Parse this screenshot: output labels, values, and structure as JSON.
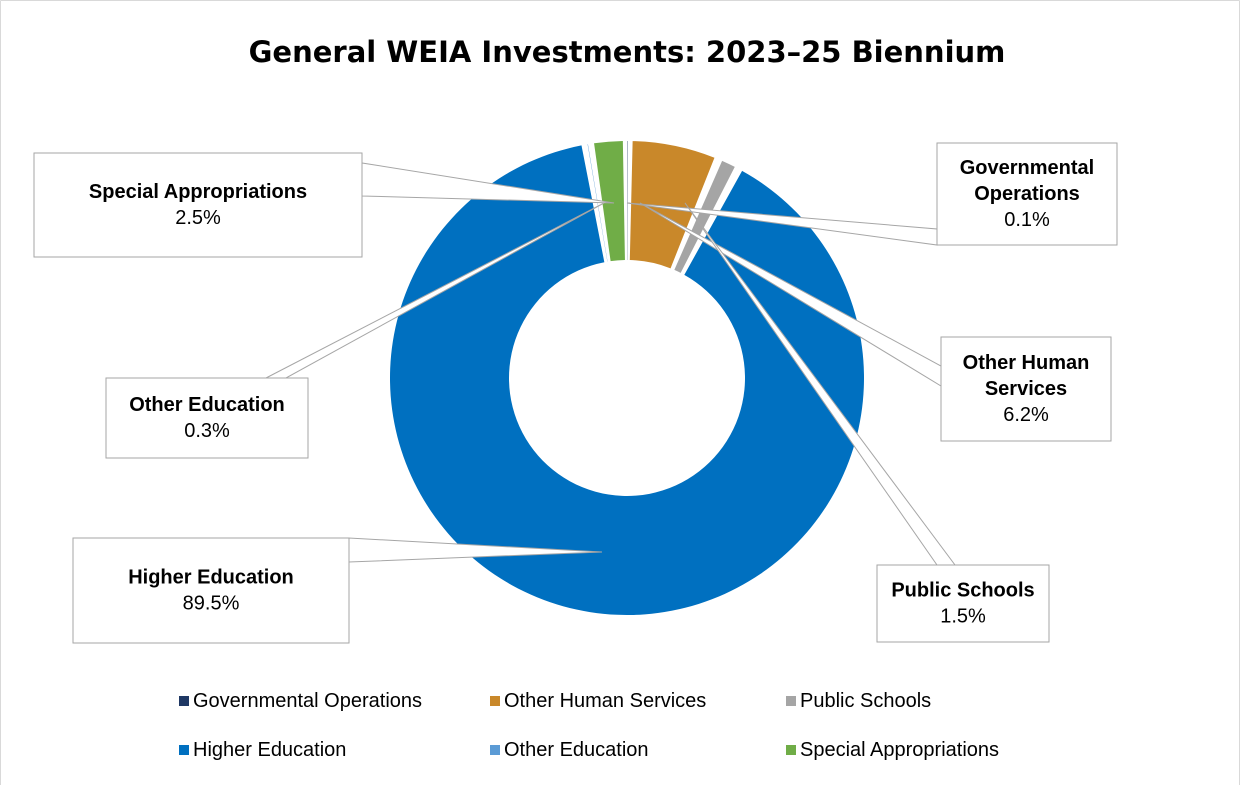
{
  "chart_data": {
    "type": "pie",
    "variant": "doughnut",
    "title": "General WEIA Investments: 2023–25 Biennium",
    "unit": "%",
    "categories": [
      "Governmental Operations",
      "Other Human Services",
      "Public Schools",
      "Higher Education",
      "Other Education",
      "Special Appropriations"
    ],
    "values": [
      0.1,
      6.2,
      1.5,
      89.5,
      0.3,
      2.5
    ],
    "value_labels": [
      "0.1%",
      "6.2%",
      "1.5%",
      "89.5%",
      "0.3%",
      "2.5%"
    ],
    "callout_lines": [
      [
        "Governmental",
        "Operations"
      ],
      [
        "Other Human",
        "Services"
      ],
      [
        "Public Schools"
      ],
      [
        "Higher Education"
      ],
      [
        "Other Education"
      ],
      [
        "Special Appropriations"
      ]
    ],
    "colors": [
      "#1f3864",
      "#c9882a",
      "#a5a5a5",
      "#0070c0",
      "#5b9bd5",
      "#70ad47"
    ],
    "legend": {
      "position": "bottom",
      "entries": [
        "Governmental Operations",
        "Other Human Services",
        "Public Schools",
        "Higher Education",
        "Other Education",
        "Special Appropriations"
      ]
    }
  }
}
